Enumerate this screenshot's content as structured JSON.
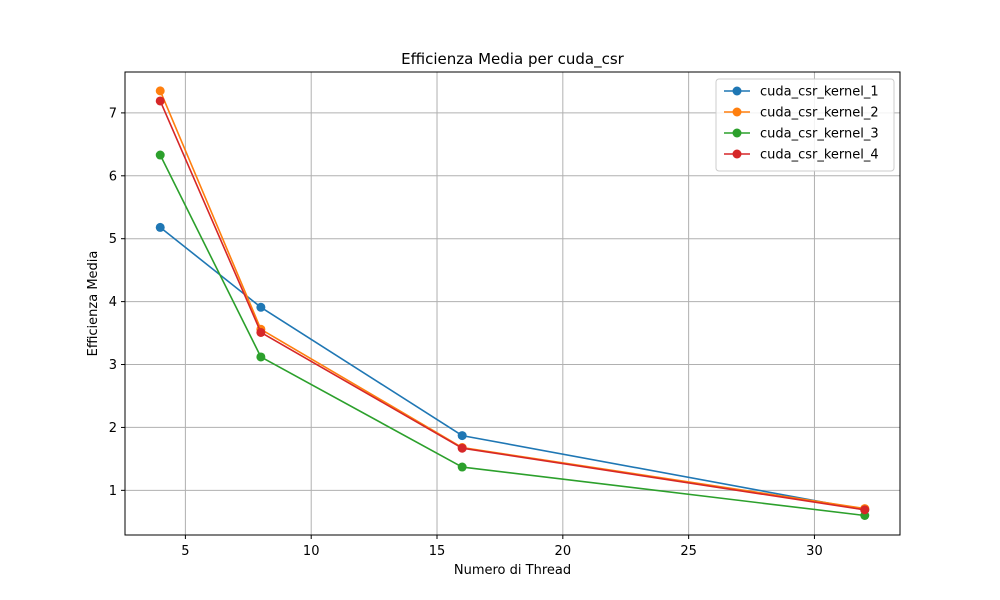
{
  "chart_data": {
    "type": "line",
    "title": "Efficienza Media per cuda_csr",
    "xlabel": "Numero di Thread",
    "ylabel": "Efficienza Media",
    "x": [
      4,
      8,
      16,
      32
    ],
    "xlim": [
      2.6,
      33.4
    ],
    "ylim": [
      0.29,
      7.65
    ],
    "xticks": [
      5,
      10,
      15,
      20,
      25,
      30
    ],
    "yticks": [
      1,
      2,
      3,
      4,
      5,
      6,
      7
    ],
    "grid": true,
    "legend_position": "top-right",
    "series": [
      {
        "name": "cuda_csr_kernel_1",
        "color": "#1f77b4",
        "values": [
          5.18,
          3.91,
          1.87,
          0.69
        ]
      },
      {
        "name": "cuda_csr_kernel_2",
        "color": "#ff7f0e",
        "values": [
          7.35,
          3.56,
          1.68,
          0.71
        ]
      },
      {
        "name": "cuda_csr_kernel_3",
        "color": "#2ca02c",
        "values": [
          6.33,
          3.12,
          1.37,
          0.6
        ]
      },
      {
        "name": "cuda_csr_kernel_4",
        "color": "#d62728",
        "values": [
          7.19,
          3.51,
          1.67,
          0.69
        ]
      }
    ]
  }
}
